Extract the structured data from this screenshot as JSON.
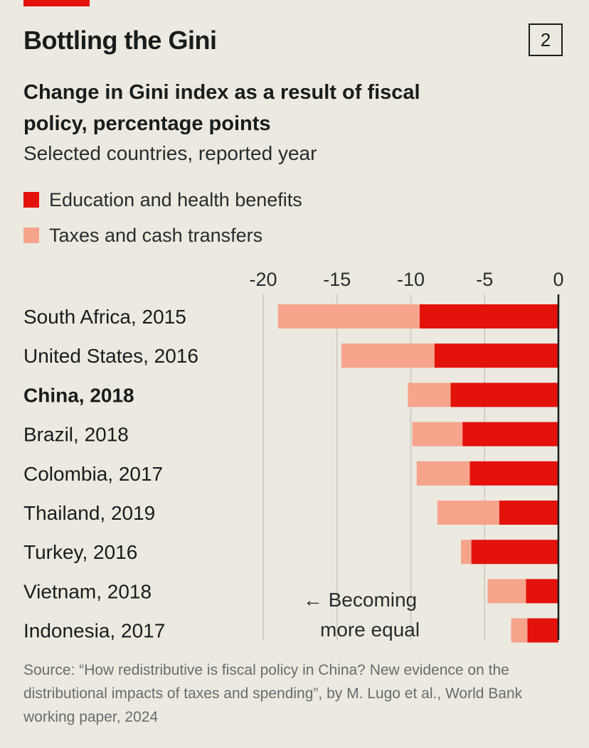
{
  "header": {
    "title": "Bottling the Gini",
    "chart_number": "2",
    "subtitle": "Change in Gini index as a result of fiscal policy, percentage points",
    "subsubtitle": "Selected countries, reported year"
  },
  "legend": [
    {
      "label": "Education and health benefits",
      "color": "#e3120b"
    },
    {
      "label": "Taxes and cash transfers",
      "color": "#f6a48c"
    }
  ],
  "annotation": {
    "line1": "← Becoming",
    "line2": "more equal"
  },
  "source": "Source: “How redistributive is fiscal policy in China? New evidence on the distributional impacts of taxes and spending”, by M. Lugo et al., World Bank working paper, 2024",
  "chart_data": {
    "type": "bar",
    "orientation": "horizontal",
    "stacked": true,
    "title": "Change in Gini index as a result of fiscal policy, percentage points",
    "xlim": [
      -20,
      0
    ],
    "xticks": [
      -20,
      -15,
      -10,
      -5,
      0
    ],
    "grid": true,
    "categories": [
      "South Africa, 2015",
      "United States, 2016",
      "China, 2018",
      "Brazil, 2018",
      "Colombia, 2017",
      "Thailand, 2019",
      "Turkey, 2016",
      "Vietnam, 2018",
      "Indonesia, 2017"
    ],
    "highlight": "China, 2018",
    "series": [
      {
        "name": "Education and health benefits",
        "color": "#e3120b",
        "values": [
          -9.4,
          -8.4,
          -7.3,
          -6.5,
          -6.0,
          -4.0,
          -5.9,
          -2.2,
          -2.1
        ]
      },
      {
        "name": "Taxes and cash transfers",
        "color": "#f6a48c",
        "values": [
          -9.6,
          -6.3,
          -2.9,
          -3.4,
          -3.6,
          -4.2,
          -0.7,
          -2.6,
          -1.1
        ]
      }
    ]
  }
}
